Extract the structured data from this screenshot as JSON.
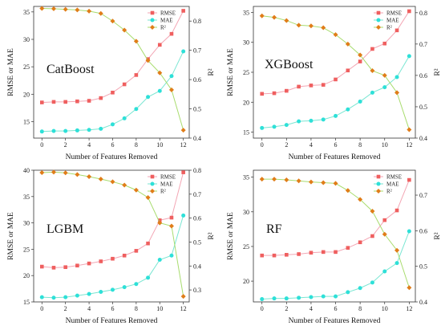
{
  "figure": {
    "xlabel": "Number of Features Removed",
    "ylabel_left": "RMSE or MAE",
    "ylabel_right": "R²"
  },
  "colors": {
    "RMSE_marker": "#ef5f5f",
    "RMSE_line": "#f3a6b4",
    "MAE_marker": "#2ee0d8",
    "MAE_line": "#7ae6d2",
    "R2_marker": "#e07d19",
    "R2_line": "#a8dc6e"
  },
  "chart_data": [
    {
      "type": "line",
      "model": "CatBoost",
      "x": [
        0,
        1,
        2,
        3,
        4,
        5,
        6,
        7,
        8,
        9,
        10,
        11,
        12
      ],
      "xticks": [
        0,
        2,
        4,
        6,
        8,
        10,
        12
      ],
      "ylim_left": [
        12,
        36
      ],
      "yticks_left": [
        15,
        20,
        25,
        30,
        35
      ],
      "ylim_right": [
        0.4,
        0.85
      ],
      "yticks_right": [
        0.4,
        0.5,
        0.6,
        0.7,
        0.8
      ],
      "legend": [
        "RMSE",
        "MAE",
        "R²"
      ],
      "legend_position": "top-right",
      "series": [
        {
          "name": "RMSE",
          "axis": "left",
          "values": [
            18.5,
            18.6,
            18.6,
            18.7,
            18.8,
            19.3,
            20.3,
            21.8,
            23.5,
            26.4,
            29.0,
            31.0,
            35.2
          ]
        },
        {
          "name": "MAE",
          "axis": "left",
          "values": [
            13.2,
            13.3,
            13.3,
            13.4,
            13.5,
            13.7,
            14.5,
            15.6,
            17.3,
            19.5,
            20.6,
            23.3,
            27.8
          ]
        },
        {
          "name": "R²",
          "axis": "right",
          "values": [
            0.843,
            0.842,
            0.84,
            0.838,
            0.834,
            0.826,
            0.8,
            0.769,
            0.731,
            0.665,
            0.623,
            0.565,
            0.427
          ]
        }
      ]
    },
    {
      "type": "line",
      "model": "XGBoost",
      "x": [
        0,
        1,
        2,
        3,
        4,
        5,
        6,
        7,
        8,
        9,
        10,
        11,
        12
      ],
      "xticks": [
        0,
        2,
        4,
        6,
        8,
        10,
        12
      ],
      "ylim_left": [
        14,
        36
      ],
      "yticks_left": [
        15,
        20,
        25,
        30,
        35
      ],
      "ylim_right": [
        0.4,
        0.82
      ],
      "yticks_right": [
        0.4,
        0.5,
        0.6,
        0.7,
        0.8
      ],
      "legend": [
        "RMSE",
        "MAE",
        "R²"
      ],
      "legend_position": "top-right",
      "series": [
        {
          "name": "RMSE",
          "axis": "left",
          "values": [
            21.4,
            21.5,
            21.9,
            22.6,
            22.8,
            22.9,
            23.8,
            25.3,
            26.8,
            28.9,
            29.8,
            32.0,
            35.2
          ]
        },
        {
          "name": "MAE",
          "axis": "left",
          "values": [
            15.7,
            15.9,
            16.2,
            16.8,
            16.9,
            17.1,
            17.7,
            18.8,
            20.1,
            21.6,
            22.5,
            24.2,
            27.7
          ]
        },
        {
          "name": "R²",
          "axis": "right",
          "values": [
            0.79,
            0.785,
            0.775,
            0.76,
            0.758,
            0.752,
            0.73,
            0.7,
            0.665,
            0.615,
            0.6,
            0.545,
            0.427
          ]
        }
      ]
    },
    {
      "type": "line",
      "model": "LGBM",
      "x": [
        0,
        1,
        2,
        3,
        4,
        5,
        6,
        7,
        8,
        9,
        10,
        11,
        12
      ],
      "xticks": [
        0,
        2,
        4,
        6,
        8,
        10,
        12
      ],
      "ylim_left": [
        15,
        40
      ],
      "yticks_left": [
        15,
        20,
        25,
        30,
        35,
        40
      ],
      "ylim_right": [
        0.25,
        0.8
      ],
      "yticks_right": [
        0.3,
        0.4,
        0.5,
        0.6,
        0.7,
        0.8
      ],
      "legend": [
        "RMSE",
        "MAE",
        "R²"
      ],
      "legend_position": "top-right",
      "series": [
        {
          "name": "RMSE",
          "axis": "left",
          "values": [
            21.7,
            21.5,
            21.6,
            21.9,
            22.3,
            22.7,
            23.2,
            23.8,
            24.7,
            26.1,
            30.5,
            31.0,
            39.6
          ]
        },
        {
          "name": "MAE",
          "axis": "left",
          "values": [
            15.9,
            15.8,
            15.9,
            16.2,
            16.5,
            16.9,
            17.3,
            17.8,
            18.4,
            19.6,
            23.0,
            23.8,
            31.4
          ]
        },
        {
          "name": "R²",
          "axis": "right",
          "values": [
            0.79,
            0.792,
            0.789,
            0.782,
            0.773,
            0.763,
            0.752,
            0.738,
            0.717,
            0.686,
            0.58,
            0.567,
            0.273
          ]
        }
      ]
    },
    {
      "type": "line",
      "model": "RF",
      "x": [
        0,
        1,
        2,
        3,
        4,
        5,
        6,
        7,
        8,
        9,
        10,
        11,
        12
      ],
      "xticks": [
        0,
        2,
        4,
        6,
        8,
        10,
        12
      ],
      "ylim_left": [
        17,
        36
      ],
      "yticks_left": [
        20,
        25,
        30,
        35
      ],
      "ylim_right": [
        0.4,
        0.77
      ],
      "yticks_right": [
        0.4,
        0.5,
        0.6,
        0.7
      ],
      "legend": [
        "RMSE",
        "MAE",
        "R²"
      ],
      "legend_position": "top-right",
      "series": [
        {
          "name": "RMSE",
          "axis": "left",
          "values": [
            23.7,
            23.7,
            23.8,
            23.9,
            24.1,
            24.2,
            24.2,
            24.8,
            25.6,
            26.5,
            28.8,
            30.2,
            34.6
          ]
        },
        {
          "name": "MAE",
          "axis": "left",
          "values": [
            17.4,
            17.5,
            17.5,
            17.6,
            17.7,
            17.8,
            17.8,
            18.4,
            19.0,
            19.8,
            21.4,
            22.6,
            27.2
          ]
        },
        {
          "name": "R²",
          "axis": "right",
          "values": [
            0.745,
            0.745,
            0.743,
            0.74,
            0.737,
            0.735,
            0.733,
            0.713,
            0.688,
            0.655,
            0.59,
            0.545,
            0.44
          ]
        }
      ]
    }
  ]
}
